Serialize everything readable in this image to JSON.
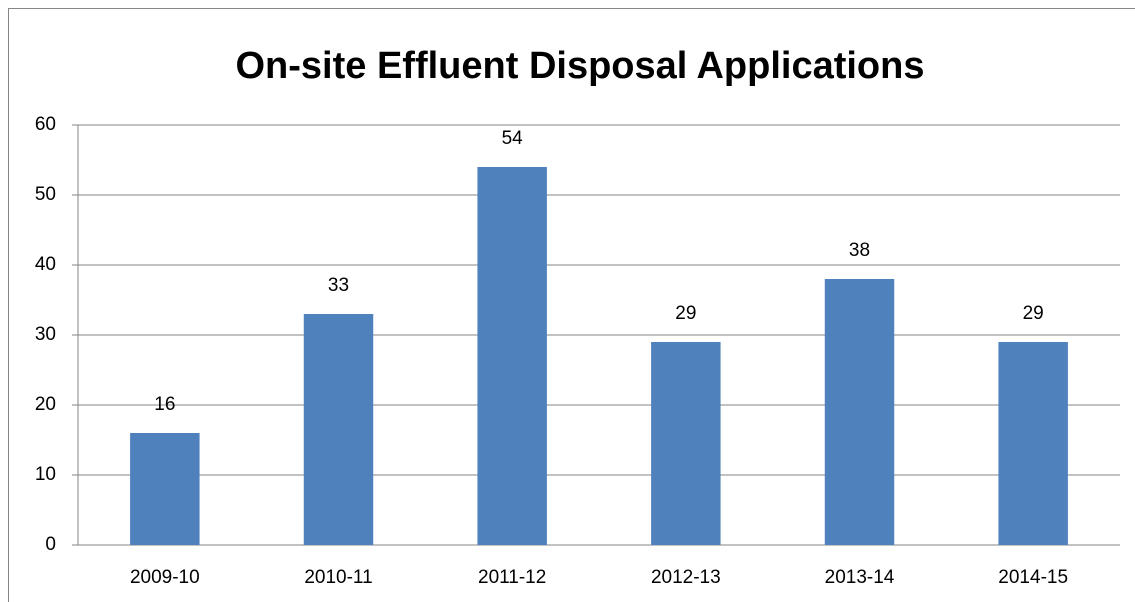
{
  "chart_data": {
    "type": "bar",
    "title": "On-site Effluent Disposal Applications",
    "categories": [
      "2009-10",
      "2010-11",
      "2011-12",
      "2012-13",
      "2013-14",
      "2014-15"
    ],
    "values": [
      16,
      33,
      54,
      29,
      38,
      29
    ],
    "color": "#4f81bd",
    "ylim": [
      0,
      60
    ],
    "yticks": [
      0,
      10,
      20,
      30,
      40,
      50,
      60
    ],
    "grid": true,
    "data_labels": true
  }
}
